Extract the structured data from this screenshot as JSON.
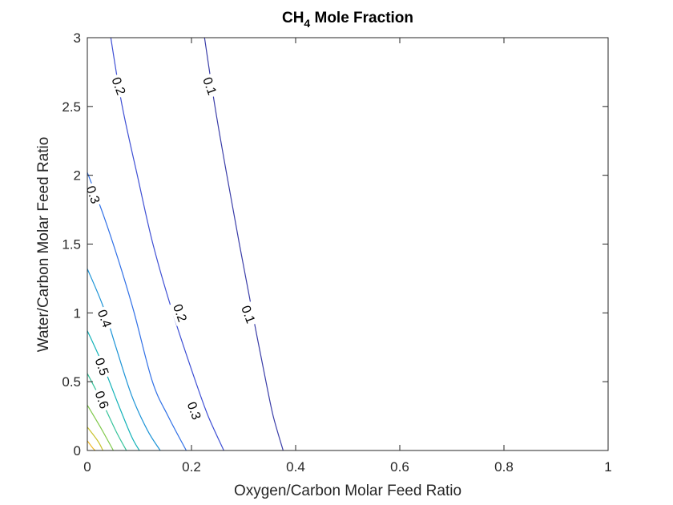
{
  "chart_data": {
    "type": "contour",
    "title": {
      "main": "CH",
      "subscript": "4",
      "rest": " Mole Fraction"
    },
    "xlabel": "Oxygen/Carbon Molar Feed Ratio",
    "ylabel": "Water/Carbon Molar Feed Ratio",
    "xlim": [
      0,
      1
    ],
    "ylim": [
      0,
      3
    ],
    "x_ticks": [
      0,
      0.2,
      0.4,
      0.6,
      0.8,
      1
    ],
    "x_tick_labels": [
      "0",
      "0.2",
      "0.4",
      "0.6",
      "0.8",
      "1"
    ],
    "y_ticks": [
      0,
      0.5,
      1,
      1.5,
      2,
      2.5,
      3
    ],
    "y_tick_labels": [
      "0",
      "0.5",
      "1",
      "1.5",
      "2",
      "2.5",
      "3"
    ],
    "grid": false,
    "contours": [
      {
        "level": 0.1,
        "color": "#3a3da8",
        "points": [
          [
            0.225,
            3.0
          ],
          [
            0.245,
            2.5
          ],
          [
            0.268,
            2.0
          ],
          [
            0.292,
            1.5
          ],
          [
            0.317,
            1.0
          ],
          [
            0.343,
            0.5
          ],
          [
            0.357,
            0.25
          ],
          [
            0.376,
            0.0
          ]
        ]
      },
      {
        "level": 0.2,
        "color": "#3e4fd4",
        "points": [
          [
            0.045,
            3.0
          ],
          [
            0.067,
            2.5
          ],
          [
            0.096,
            2.0
          ],
          [
            0.126,
            1.5
          ],
          [
            0.164,
            1.0
          ],
          [
            0.208,
            0.5
          ],
          [
            0.232,
            0.25
          ],
          [
            0.262,
            0.0
          ]
        ]
      },
      {
        "level": 0.3,
        "color": "#2f6fe6",
        "points": [
          [
            0.0,
            2.02
          ],
          [
            0.03,
            1.72
          ],
          [
            0.06,
            1.38
          ],
          [
            0.09,
            1.0
          ],
          [
            0.125,
            0.5
          ],
          [
            0.155,
            0.25
          ],
          [
            0.19,
            0.0
          ]
        ]
      },
      {
        "level": 0.4,
        "color": "#1b93d6",
        "points": [
          [
            0.0,
            1.32
          ],
          [
            0.03,
            1.05
          ],
          [
            0.055,
            0.75
          ],
          [
            0.085,
            0.4
          ],
          [
            0.115,
            0.15
          ],
          [
            0.14,
            0.0
          ]
        ]
      },
      {
        "level": 0.5,
        "color": "#12b2b8",
        "points": [
          [
            0.0,
            0.87
          ],
          [
            0.03,
            0.62
          ],
          [
            0.06,
            0.33
          ],
          [
            0.085,
            0.1
          ],
          [
            0.1,
            0.0
          ]
        ]
      },
      {
        "level": 0.6,
        "color": "#35c39a",
        "points": [
          [
            0.0,
            0.56
          ],
          [
            0.03,
            0.34
          ],
          [
            0.055,
            0.14
          ],
          [
            0.075,
            0.0
          ]
        ]
      },
      {
        "level": 0.7,
        "color": "#7fc84a",
        "points": [
          [
            0.0,
            0.33
          ],
          [
            0.025,
            0.17
          ],
          [
            0.05,
            0.0
          ]
        ]
      },
      {
        "level": 0.8,
        "color": "#c8c22c",
        "points": [
          [
            0.0,
            0.17
          ],
          [
            0.02,
            0.07
          ],
          [
            0.03,
            0.0
          ]
        ]
      },
      {
        "level": 0.9,
        "color": "#f0b82a",
        "points": [
          [
            0.0,
            0.07
          ],
          [
            0.01,
            0.02
          ],
          [
            0.015,
            0.0
          ]
        ]
      }
    ],
    "contour_labels": [
      {
        "text": "0.1",
        "x": 0.236,
        "y": 2.65
      },
      {
        "text": "0.1",
        "x": 0.31,
        "y": 0.99
      },
      {
        "text": "0.2",
        "x": 0.061,
        "y": 2.65
      },
      {
        "text": "0.2",
        "x": 0.179,
        "y": 1.0
      },
      {
        "text": "0.3",
        "x": 0.206,
        "y": 0.29
      },
      {
        "text": "0.3",
        "x": 0.012,
        "y": 1.86
      },
      {
        "text": "0.4",
        "x": 0.034,
        "y": 0.96
      },
      {
        "text": "0.5",
        "x": 0.029,
        "y": 0.61
      },
      {
        "text": "0.6",
        "x": 0.029,
        "y": 0.37
      }
    ]
  }
}
